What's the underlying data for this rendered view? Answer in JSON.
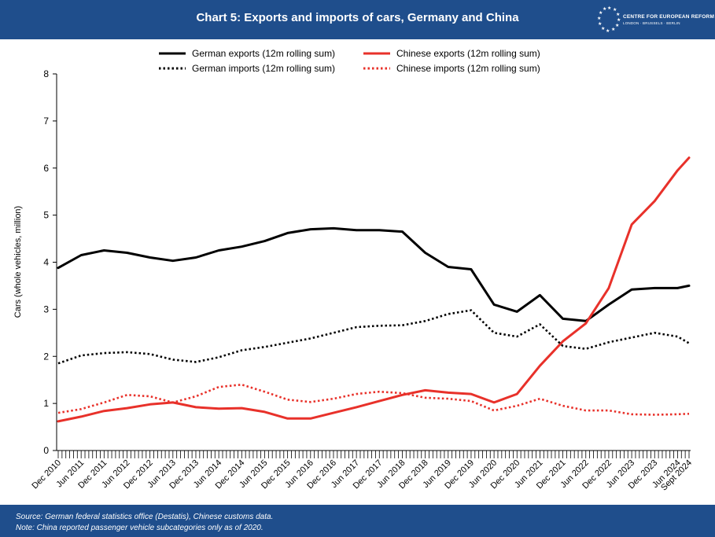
{
  "header": {
    "title": "Chart 5: Exports and imports of cars, Germany and China",
    "brand_name": "CENTRE FOR EUROPEAN REFORM",
    "brand_cities": "LONDON · BRUSSELS · BERLIN",
    "background_color": "#1f4e8c"
  },
  "footer": {
    "source": "Source: German federal statistics office (Destatis), Chinese customs data.",
    "note": "Note: China reported passenger vehicle subcategories only as of 2020."
  },
  "chart_data": {
    "type": "line",
    "title": "Chart 5: Exports and imports of cars, Germany and China",
    "xlabel": "",
    "ylabel": "Cars (whole vehicles, million)",
    "ylim": [
      0,
      8
    ],
    "yticks": [
      0,
      1,
      2,
      3,
      4,
      5,
      6,
      7,
      8
    ],
    "x_tick_labels": [
      "Dec 2010",
      "Jun 2011",
      "Dec 2011",
      "Jun 2012",
      "Dec 2012",
      "Jun 2013",
      "Dec 2013",
      "Jun 2014",
      "Dec 2014",
      "Jun 2015",
      "Dec 2015",
      "Jun 2016",
      "Dec 2016",
      "Jun 2017",
      "Dec 2017",
      "Jun 2018",
      "Dec 2018",
      "Jun 2019",
      "Dec 2019",
      "Jun 2020",
      "Dec 2020",
      "Jun 2021",
      "Dec 2021",
      "Jun 2022",
      "Dec 2022",
      "Jun 2023",
      "Dec 2023",
      "Jun 2024",
      "Sept 2024"
    ],
    "legend_position": "top",
    "grid": false,
    "x": [
      "Dec 2010",
      "Jun 2011",
      "Dec 2011",
      "Jun 2012",
      "Dec 2012",
      "Jun 2013",
      "Dec 2013",
      "Jun 2014",
      "Dec 2014",
      "Jun 2015",
      "Dec 2015",
      "Jun 2016",
      "Dec 2016",
      "Jun 2017",
      "Dec 2017",
      "Jun 2018",
      "Dec 2018",
      "Jun 2019",
      "Dec 2019",
      "Jun 2020",
      "Dec 2020",
      "Jun 2021",
      "Dec 2021",
      "Jun 2022",
      "Dec 2022",
      "Jun 2023",
      "Dec 2023",
      "Jun 2024",
      "Sept 2024"
    ],
    "series": [
      {
        "name": "German exports (12m rolling sum)",
        "color": "#000000",
        "style": "solid",
        "values": [
          3.88,
          4.15,
          4.25,
          4.2,
          4.1,
          4.03,
          4.1,
          4.25,
          4.33,
          4.45,
          4.62,
          4.7,
          4.72,
          4.68,
          4.68,
          4.65,
          4.2,
          3.9,
          3.85,
          3.1,
          2.95,
          3.3,
          2.8,
          2.75,
          3.1,
          3.42,
          3.45,
          3.45,
          3.5
        ]
      },
      {
        "name": "Chinese exports (12m rolling sum)",
        "color": "#e8312a",
        "style": "solid",
        "values": [
          0.62,
          0.72,
          0.84,
          0.9,
          0.98,
          1.02,
          0.92,
          0.89,
          0.9,
          0.82,
          0.68,
          0.68,
          0.8,
          0.92,
          1.05,
          1.18,
          1.28,
          1.23,
          1.2,
          1.02,
          1.2,
          1.8,
          2.32,
          2.7,
          3.45,
          4.8,
          5.3,
          5.95,
          6.22
        ]
      },
      {
        "name": "German imports (12m rolling sum)",
        "color": "#000000",
        "style": "dotted",
        "values": [
          1.85,
          2.02,
          2.07,
          2.09,
          2.05,
          1.93,
          1.88,
          1.98,
          2.13,
          2.2,
          2.29,
          2.38,
          2.5,
          2.62,
          2.65,
          2.66,
          2.75,
          2.9,
          2.98,
          2.5,
          2.42,
          2.68,
          2.22,
          2.16,
          2.3,
          2.4,
          2.5,
          2.42,
          2.28
        ]
      },
      {
        "name": "Chinese imports (12m rolling sum)",
        "color": "#e8312a",
        "style": "dotted",
        "values": [
          0.8,
          0.88,
          1.02,
          1.18,
          1.15,
          1.02,
          1.15,
          1.35,
          1.4,
          1.25,
          1.08,
          1.03,
          1.1,
          1.2,
          1.25,
          1.22,
          1.12,
          1.1,
          1.05,
          0.85,
          0.95,
          1.1,
          0.95,
          0.85,
          0.85,
          0.77,
          0.76,
          0.77,
          0.78
        ]
      }
    ]
  }
}
